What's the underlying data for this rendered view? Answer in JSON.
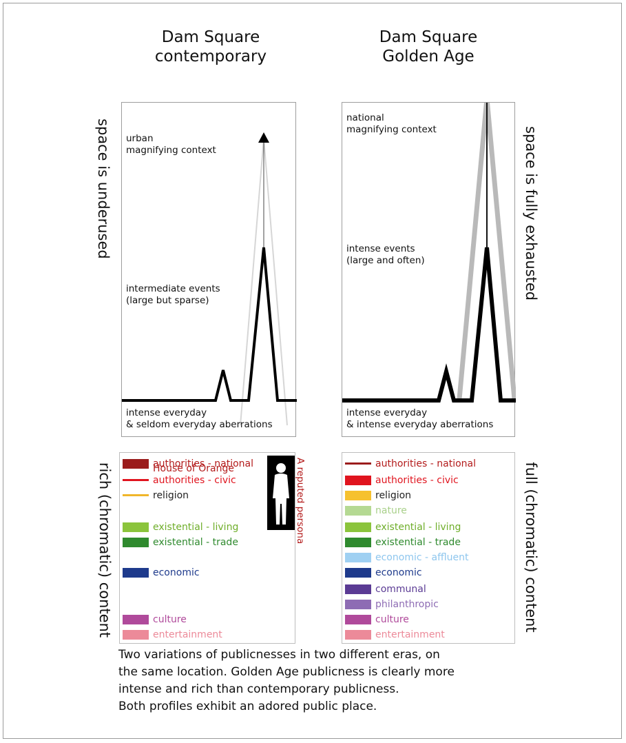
{
  "titles": {
    "left": [
      "Dam Square",
      "contemporary"
    ],
    "right": [
      "Dam Square",
      "Golden Age"
    ]
  },
  "side_labels": {
    "left_top": "space is underused",
    "right_top": "space is fully exhausted",
    "left_bottom": "rich (chromatic) content",
    "right_bottom": "full (chromatic) content"
  },
  "left_panel": {
    "context": [
      "urban",
      "magnifying context"
    ],
    "events": [
      "intermediate events",
      "(large but sparse)"
    ],
    "baseline": [
      "intense everyday",
      "& seldom everyday aberrations"
    ]
  },
  "right_panel": {
    "context": [
      "national",
      "magnifying context"
    ],
    "events": [
      "intense events",
      "(large and often)"
    ],
    "baseline": [
      "intense everyday",
      "& intense everyday aberrations"
    ]
  },
  "left_legend": [
    {
      "label": "authorities - national",
      "color": "#9b1c1c",
      "text_color": "#b31b1b",
      "style": "thick"
    },
    {
      "label": "House of Orange",
      "color": "#9b1c1c",
      "text_color": "#b31b1b",
      "style": "none"
    },
    {
      "label": "authorities - civic",
      "color": "#e0141e",
      "text_color": "#e0141e",
      "style": "thin"
    },
    {
      "label": "religion",
      "color": "#f0b62a",
      "text_color": "#222222",
      "style": "thin"
    },
    {
      "label": "existential - living",
      "color": "#8bc43c",
      "text_color": "#6fae2a",
      "style": "thick"
    },
    {
      "label": "existential - trade",
      "color": "#2f8a2e",
      "text_color": "#2f8a2e",
      "style": "thick"
    },
    {
      "label": "economic",
      "color": "#1e3a8c",
      "text_color": "#1e3a8c",
      "style": "thick"
    },
    {
      "label": "culture",
      "color": "#b04a9b",
      "text_color": "#b04a9b",
      "style": "thick"
    },
    {
      "label": "entertainment",
      "color": "#ec8a99",
      "text_color": "#ec8a99",
      "style": "thick"
    }
  ],
  "right_legend": [
    {
      "label": "authorities - national",
      "color": "#9b1c1c",
      "text_color": "#b31b1b",
      "style": "thin"
    },
    {
      "label": "authorities - civic",
      "color": "#e0141e",
      "text_color": "#e0141e",
      "style": "thick"
    },
    {
      "label": "religion",
      "color": "#f6c12f",
      "text_color": "#222222",
      "style": "thick"
    },
    {
      "label": "nature",
      "color": "#b5d993",
      "text_color": "#a9d08a",
      "style": "thick"
    },
    {
      "label": "existential - living",
      "color": "#8bc43c",
      "text_color": "#6fae2a",
      "style": "thick"
    },
    {
      "label": "existential - trade",
      "color": "#2f8a2e",
      "text_color": "#2f8a2e",
      "style": "thick"
    },
    {
      "label": "economic - affluent",
      "color": "#9fd0f2",
      "text_color": "#8ec6ee",
      "style": "thick"
    },
    {
      "label": "economic",
      "color": "#1e3a8c",
      "text_color": "#1e3a8c",
      "style": "thick"
    },
    {
      "label": "communal",
      "color": "#5b3b94",
      "text_color": "#5b3b94",
      "style": "thick"
    },
    {
      "label": "philanthropic",
      "color": "#8e6cb4",
      "text_color": "#8e6cb4",
      "style": "thick"
    },
    {
      "label": "culture",
      "color": "#b04a9b",
      "text_color": "#b04a9b",
      "style": "thick"
    },
    {
      "label": "entertainment",
      "color": "#ec8a99",
      "text_color": "#ec8a99",
      "style": "thick"
    }
  ],
  "persona_label": "A reputed persona",
  "caption": [
    "Two variations of publicnesses in two different eras, on",
    "the same location. Golden Age publicness is clearly more",
    "intense and rich than contemporary publicness.",
    "Both profiles exhibit an adored public place."
  ]
}
